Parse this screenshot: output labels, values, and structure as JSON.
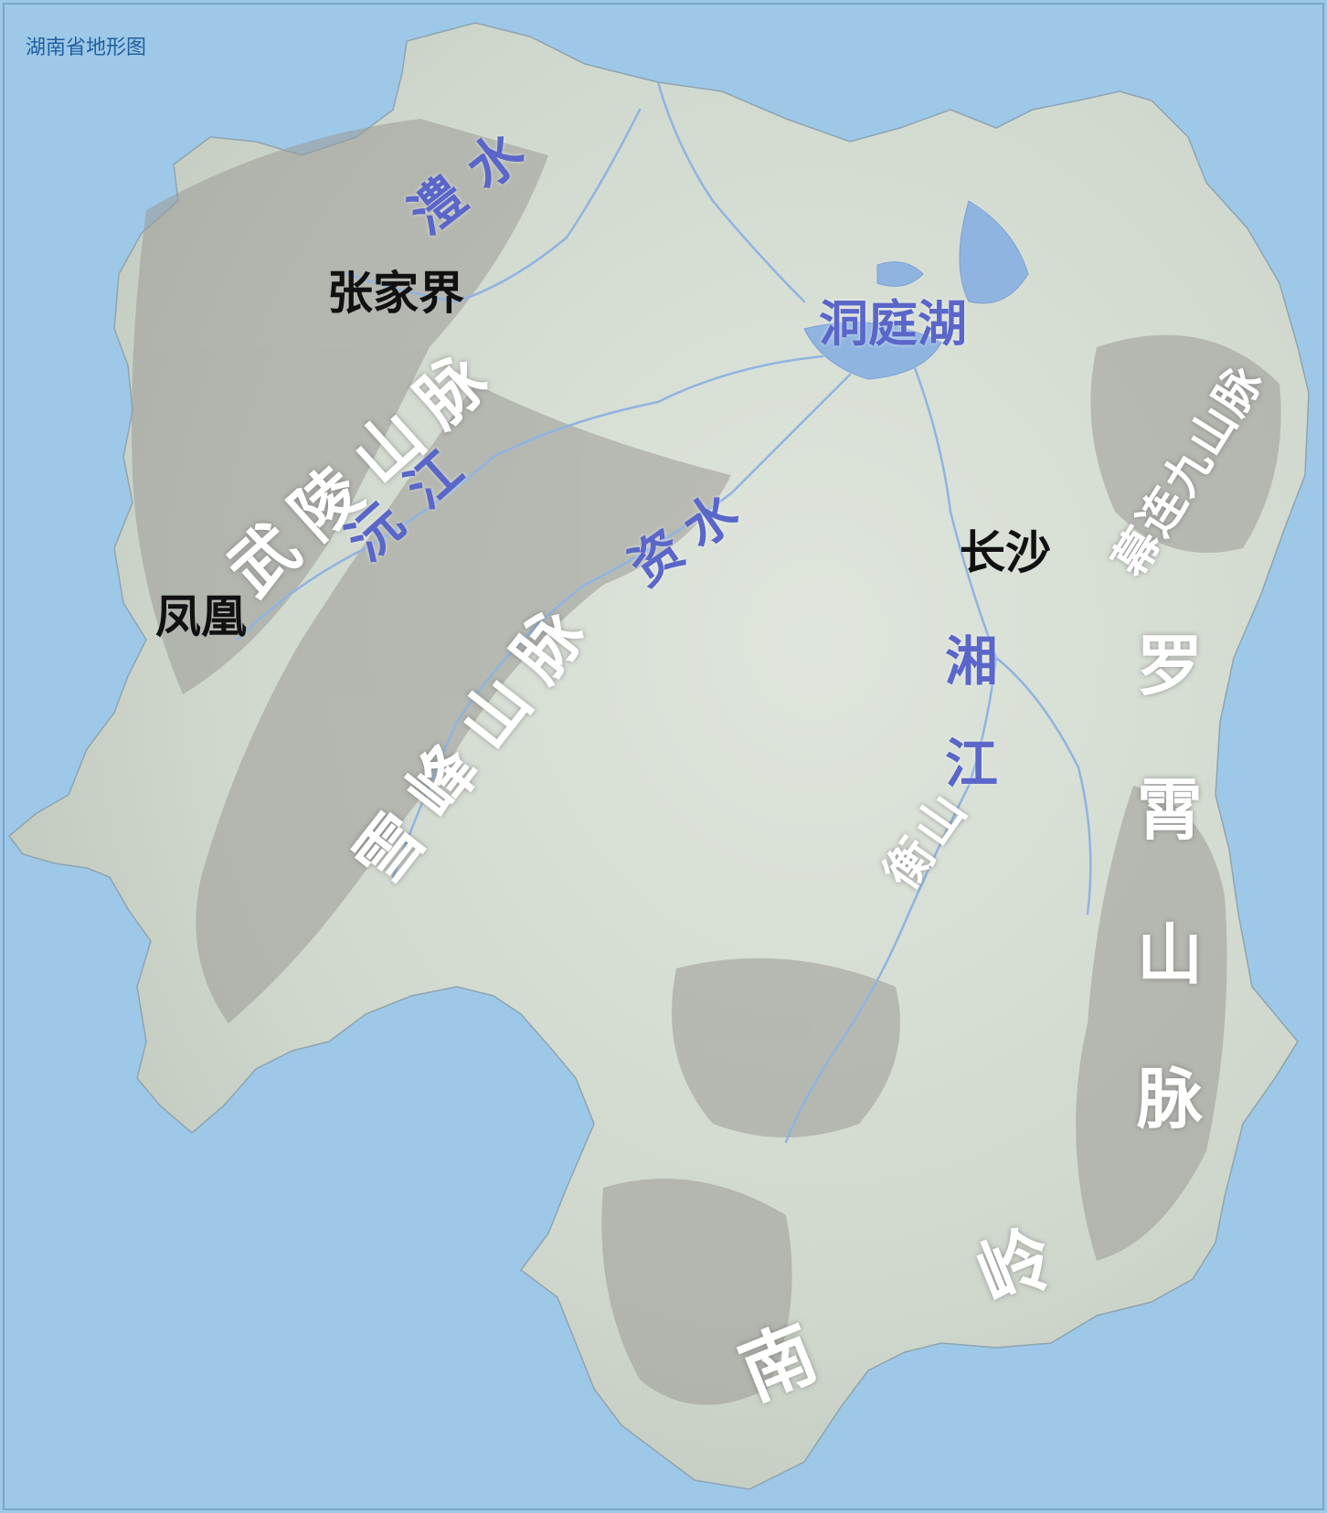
{
  "map": {
    "title": "湖南省地形图",
    "colors": {
      "water": "#9ec8e8",
      "land": "#d4dcd2",
      "mountain": "#9a9b96",
      "river": "#8fb4e0",
      "mountain_label": "#ffffff",
      "river_label": "#5a66c8",
      "city_label": "#111111",
      "title": "#1f5f9e"
    },
    "cities": [
      {
        "name": "张家界"
      },
      {
        "name": "凤凰"
      },
      {
        "name": "长沙"
      }
    ],
    "lakes": [
      {
        "name": "洞庭湖"
      }
    ],
    "rivers": [
      {
        "name": "澧水"
      },
      {
        "name": "沅江"
      },
      {
        "name": "资水"
      },
      {
        "name": "湘江"
      }
    ],
    "mountains": [
      {
        "name": "武陵山脉"
      },
      {
        "name": "雪峰山脉"
      },
      {
        "name": "衡山"
      },
      {
        "name": "幕连九山脉"
      },
      {
        "name": "罗霄山脉"
      },
      {
        "name": "南岭"
      }
    ]
  }
}
